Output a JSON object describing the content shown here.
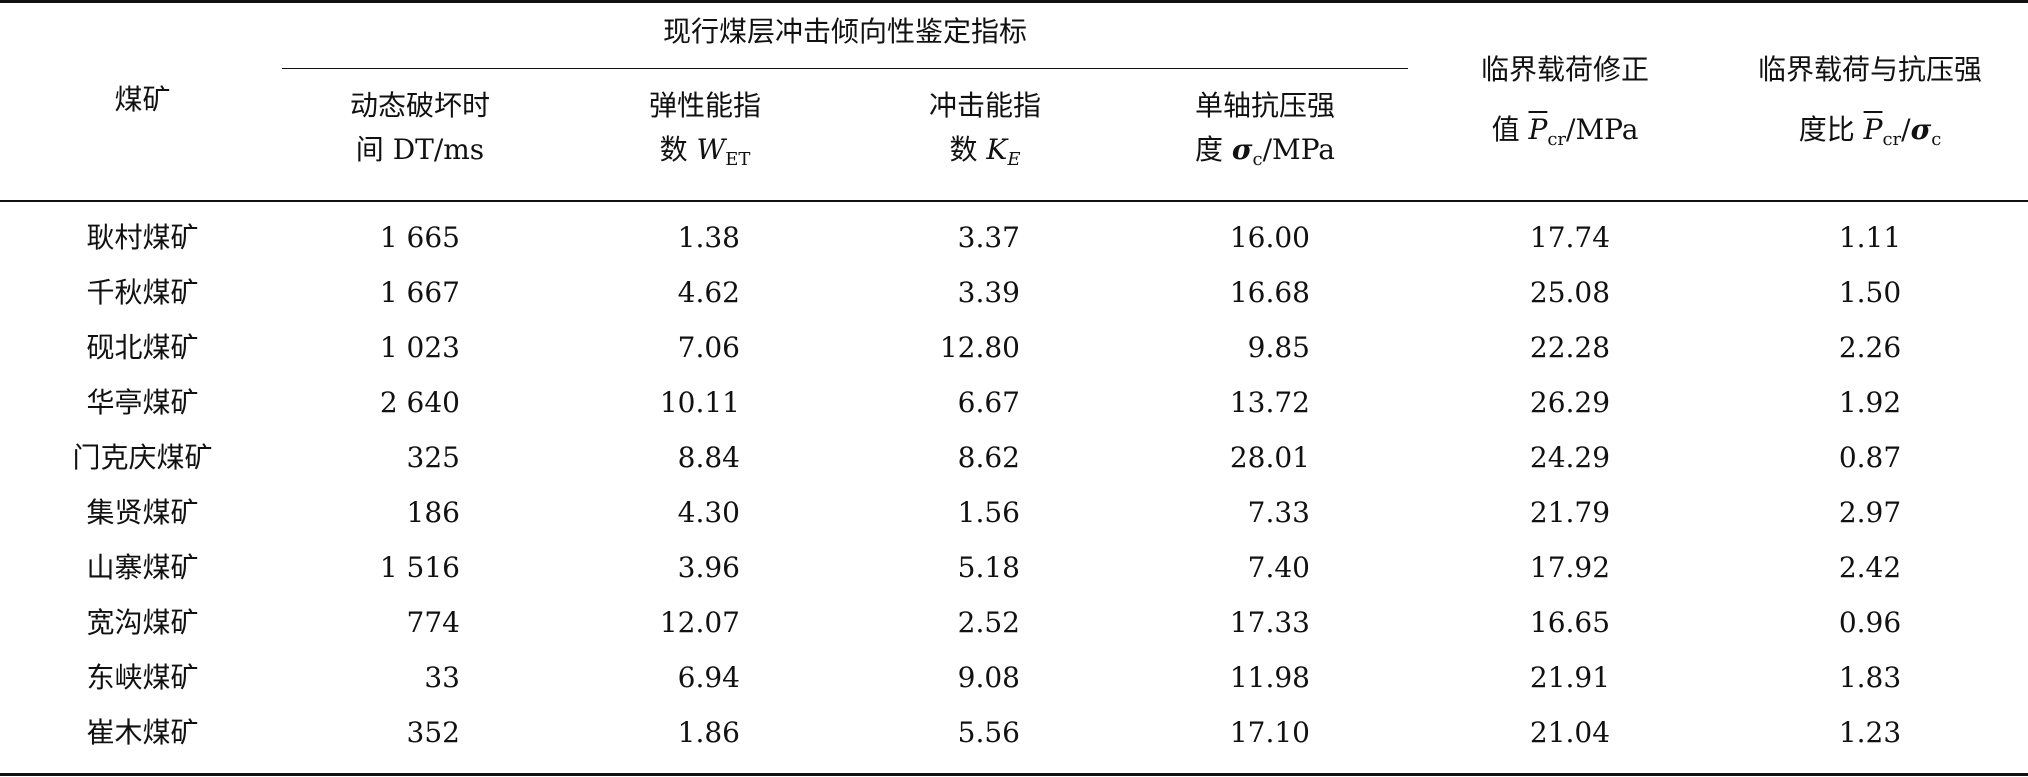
{
  "header": {
    "mine": "煤矿",
    "group": "现行煤层冲击倾向性鉴定指标",
    "col_dt": [
      "动态破坏时",
      "间 DT/ms"
    ],
    "col_wet": [
      "弹性能指",
      "数 ",
      "W",
      "ET"
    ],
    "col_ke": [
      "冲击能指",
      "数 ",
      "K",
      "E"
    ],
    "col_sc": [
      "单轴抗压强",
      "度 ",
      "σ",
      "c",
      "/MPa"
    ],
    "col_pcr": [
      "临界载荷修正",
      "值 ",
      "P",
      "cr",
      "/MPa"
    ],
    "col_ratio": [
      "临界载荷与抗压强",
      "度比 ",
      "P",
      "cr",
      "/",
      "σ",
      "c"
    ]
  },
  "rows": [
    {
      "mine": "耿村煤矿",
      "dt": "1 665",
      "wet": "1.38",
      "ke": "3.37",
      "sc": "16.00",
      "pcr": "17.74",
      "ratio": "1.11"
    },
    {
      "mine": "千秋煤矿",
      "dt": "1 667",
      "wet": "4.62",
      "ke": "3.39",
      "sc": "16.68",
      "pcr": "25.08",
      "ratio": "1.50"
    },
    {
      "mine": "砚北煤矿",
      "dt": "1 023",
      "wet": "7.06",
      "ke": "12.80",
      "sc": "9.85",
      "pcr": "22.28",
      "ratio": "2.26"
    },
    {
      "mine": "华亭煤矿",
      "dt": "2 640",
      "wet": "10.11",
      "ke": "6.67",
      "sc": "13.72",
      "pcr": "26.29",
      "ratio": "1.92"
    },
    {
      "mine": "门克庆煤矿",
      "dt": "325",
      "wet": "8.84",
      "ke": "8.62",
      "sc": "28.01",
      "pcr": "24.29",
      "ratio": "0.87"
    },
    {
      "mine": "集贤煤矿",
      "dt": "186",
      "wet": "4.30",
      "ke": "1.56",
      "sc": "7.33",
      "pcr": "21.79",
      "ratio": "2.97"
    },
    {
      "mine": "山寨煤矿",
      "dt": "1 516",
      "wet": "3.96",
      "ke": "5.18",
      "sc": "7.40",
      "pcr": "17.92",
      "ratio": "2.42"
    },
    {
      "mine": "宽沟煤矿",
      "dt": "774",
      "wet": "12.07",
      "ke": "2.52",
      "sc": "17.33",
      "pcr": "16.65",
      "ratio": "0.96"
    },
    {
      "mine": "东峡煤矿",
      "dt": "33",
      "wet": "6.94",
      "ke": "9.08",
      "sc": "11.98",
      "pcr": "21.91",
      "ratio": "1.83"
    },
    {
      "mine": "崔木煤矿",
      "dt": "352",
      "wet": "1.86",
      "ke": "5.56",
      "sc": "17.10",
      "pcr": "21.04",
      "ratio": "1.23"
    }
  ]
}
